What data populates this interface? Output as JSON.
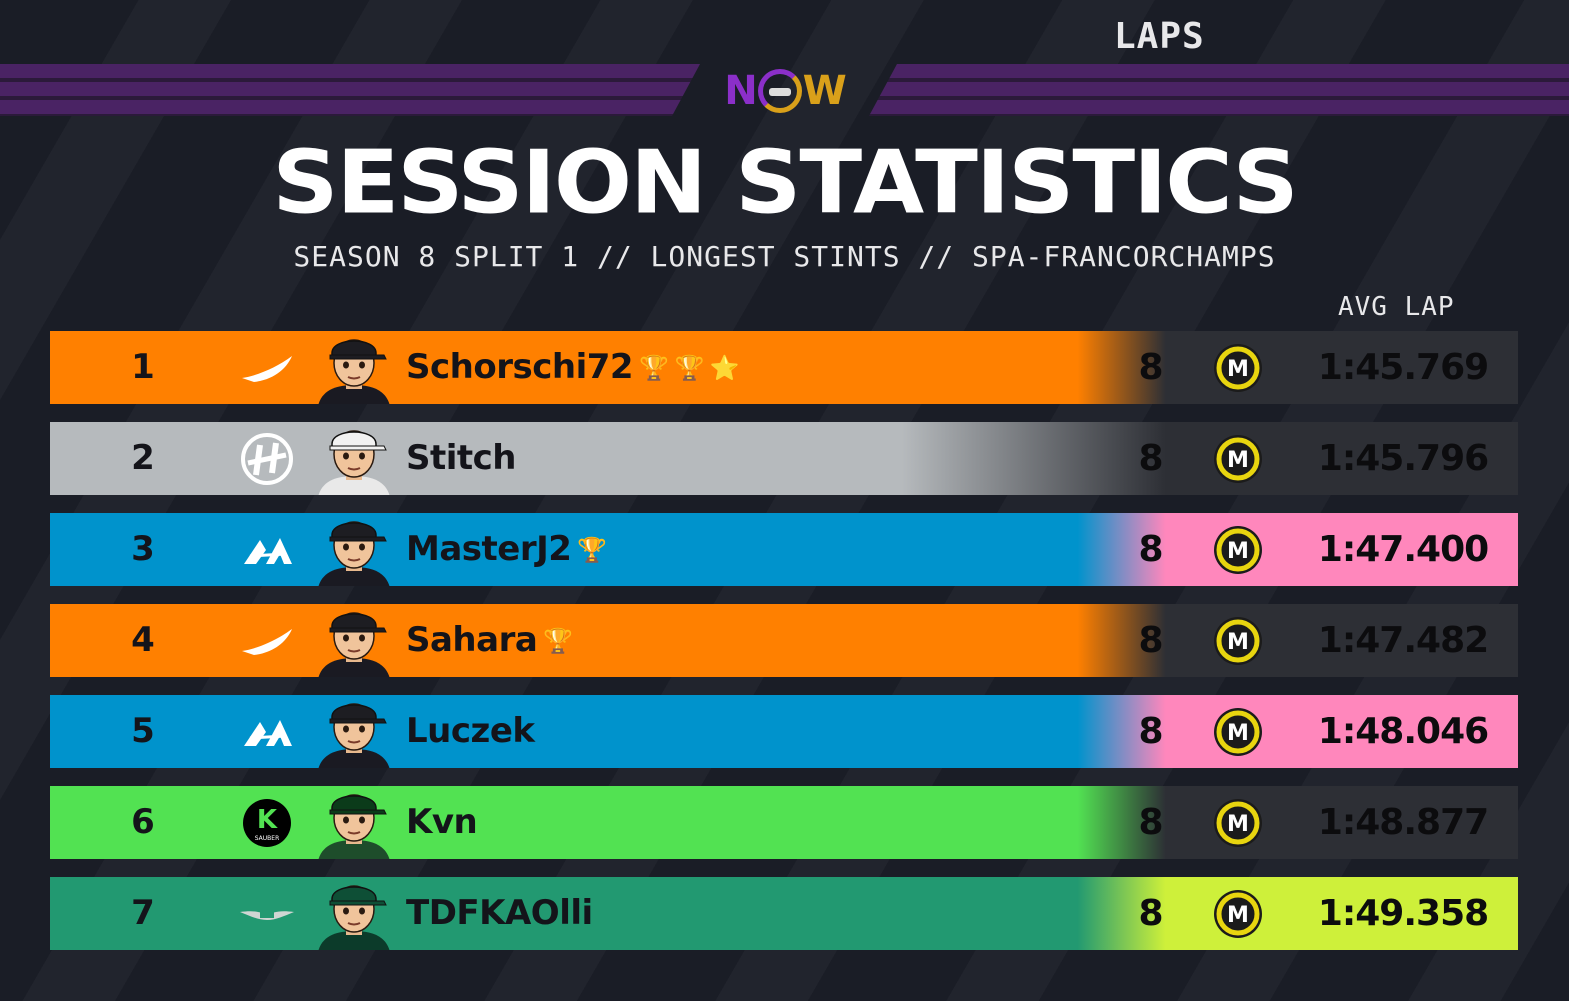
{
  "branding": {
    "logo_text_n": "N",
    "logo_text_w": "W"
  },
  "header": {
    "title": "SESSION STATISTICS",
    "subtitle": "SEASON 8 SPLIT 1 // LONGEST STINTS // SPA-FRANCORCHAMPS",
    "col_laps": "LAPS",
    "col_avg": "AVG LAP"
  },
  "colors": {
    "mclaren": "#ff8000",
    "haas": "#b6babd",
    "alpine": "#0093cc",
    "alpine_pink": "#ff87bc",
    "sauber": "#52e252",
    "aston": "#229971",
    "aston_lime": "#cef03a",
    "dark_end": "#2d2f35",
    "tyre_yellow": "#e8d50f"
  },
  "rows": [
    {
      "pos": "1",
      "team": "mclaren",
      "team_icon": "mclaren-logo-icon",
      "driver": "Schorschi72",
      "trophies": [
        "🏆",
        "🏆",
        "⭐"
      ],
      "laps": "8",
      "tyre": "M",
      "avg": "1:45.769",
      "tint": "dark"
    },
    {
      "pos": "2",
      "team": "haas",
      "team_icon": "haas-logo-icon",
      "driver": "Stitch",
      "trophies": [],
      "laps": "8",
      "tyre": "M",
      "avg": "1:45.796",
      "tint": "dark"
    },
    {
      "pos": "3",
      "team": "alpine",
      "team_icon": "alpine-logo-icon",
      "driver": "MasterJ2",
      "trophies": [
        "🏆"
      ],
      "laps": "8",
      "tyre": "M",
      "avg": "1:47.400",
      "tint": "pink"
    },
    {
      "pos": "4",
      "team": "mclaren",
      "team_icon": "mclaren-logo-icon",
      "driver": "Sahara",
      "trophies": [
        "🏆"
      ],
      "laps": "8",
      "tyre": "M",
      "avg": "1:47.482",
      "tint": "dark"
    },
    {
      "pos": "5",
      "team": "alpine",
      "team_icon": "alpine-logo-icon",
      "driver": "Luczek",
      "trophies": [],
      "laps": "8",
      "tyre": "M",
      "avg": "1:48.046",
      "tint": "pink"
    },
    {
      "pos": "6",
      "team": "sauber",
      "team_icon": "sauber-logo-icon",
      "driver": "Kvn",
      "trophies": [],
      "laps": "8",
      "tyre": "M",
      "avg": "1:48.877",
      "tint": "dark"
    },
    {
      "pos": "7",
      "team": "aston",
      "team_icon": "aston-martin-logo-icon",
      "driver": "TDFKAOlli",
      "trophies": [],
      "laps": "8",
      "tyre": "M",
      "avg": "1:49.358",
      "tint": "lime"
    }
  ]
}
